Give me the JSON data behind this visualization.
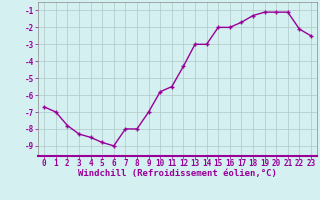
{
  "x": [
    0,
    1,
    2,
    3,
    4,
    5,
    6,
    7,
    8,
    9,
    10,
    11,
    12,
    13,
    14,
    15,
    16,
    17,
    18,
    19,
    20,
    21,
    22,
    23
  ],
  "y": [
    -6.7,
    -7.0,
    -7.8,
    -8.3,
    -8.5,
    -8.8,
    -9.0,
    -8.0,
    -8.0,
    -7.0,
    -5.8,
    -5.5,
    -4.3,
    -3.0,
    -3.0,
    -2.0,
    -2.0,
    -1.7,
    -1.3,
    -1.1,
    -1.1,
    -1.1,
    -2.1,
    -2.5
  ],
  "line_color": "#990099",
  "marker": "+",
  "marker_size": 3,
  "linewidth": 1.0,
  "bg_color": "#d4f0f0",
  "grid_color": "#b0c8c8",
  "xlabel": "Windchill (Refroidissement éolien,°C)",
  "xlabel_color": "#990099",
  "xlabel_fontsize": 6.5,
  "tick_color": "#990099",
  "tick_fontsize": 5.5,
  "ylim": [
    -9.6,
    -0.5
  ],
  "xlim": [
    -0.5,
    23.5
  ]
}
